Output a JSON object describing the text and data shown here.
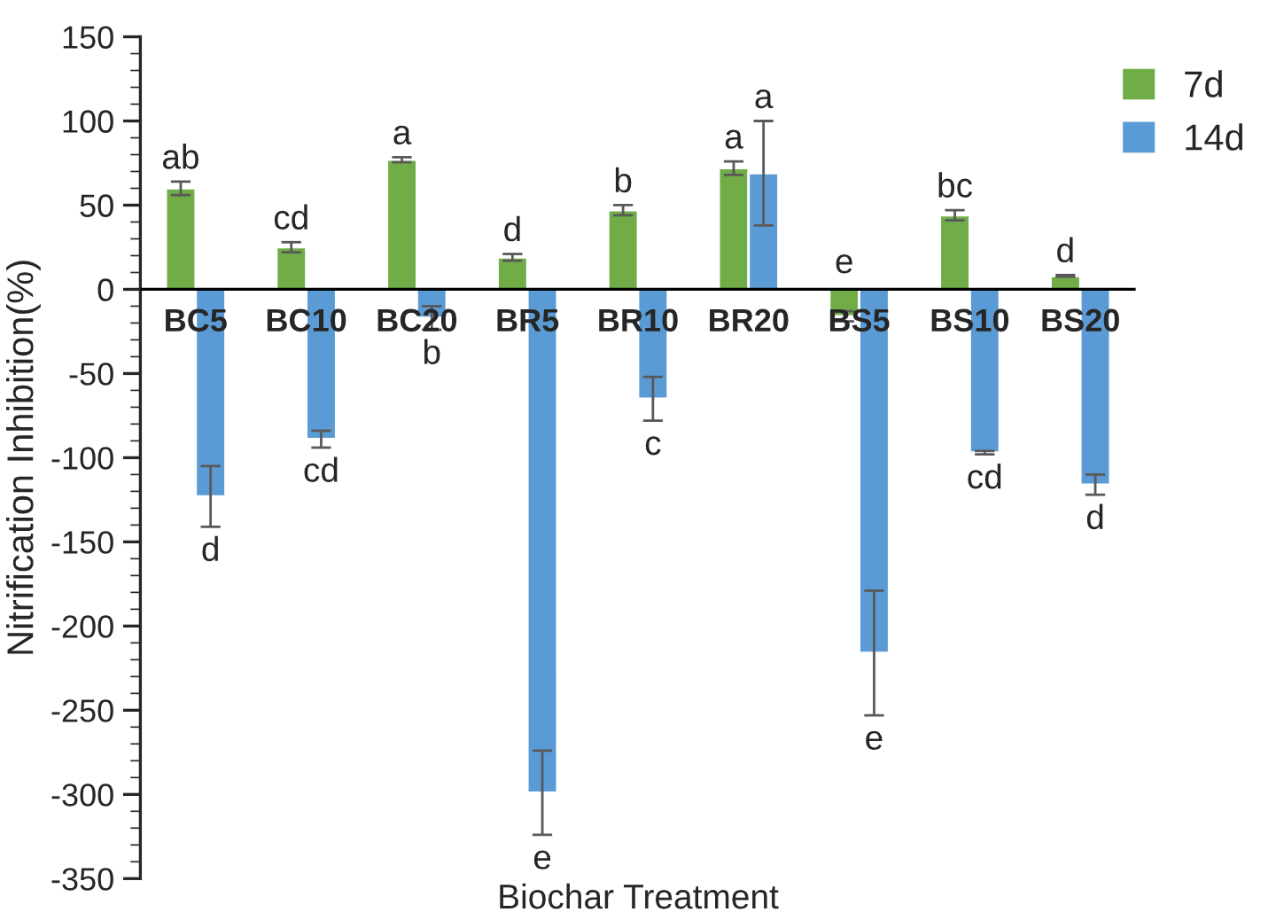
{
  "chart_data": {
    "type": "bar",
    "xlabel": "Biochar Treatment",
    "ylabel": "Nitrification Inhibition(%)",
    "categories": [
      "BC5",
      "BC10",
      "BC20",
      "BR5",
      "BR10",
      "BR20",
      "BS5",
      "BS10",
      "BS20"
    ],
    "series": [
      {
        "name": "7d",
        "color": "#70ad47",
        "values": [
          60,
          25,
          77,
          19,
          47,
          72,
          -16,
          44,
          8
        ],
        "errors": [
          4,
          3,
          1.5,
          2,
          3,
          4,
          3,
          3,
          0.5
        ]
      },
      {
        "name": "14d",
        "color": "#5b9bd5",
        "values": [
          -123,
          -89,
          -17,
          -299,
          -65,
          69,
          -216,
          -97,
          -116
        ],
        "errors": [
          18,
          5,
          7,
          25,
          13,
          31,
          37,
          1,
          6
        ]
      }
    ],
    "ylim": [
      -350,
      150
    ],
    "yticks": [
      -350,
      -300,
      -250,
      -200,
      -150,
      -100,
      -50,
      0,
      50,
      100,
      150
    ],
    "annotations": [
      "ab",
      "cd",
      "a",
      "d",
      "b",
      "a",
      "e",
      "bc",
      "d",
      "d",
      "cd",
      "b",
      "e",
      "c",
      "a",
      "e",
      "cd",
      "d"
    ],
    "legend": "top right",
    "grid": false
  }
}
